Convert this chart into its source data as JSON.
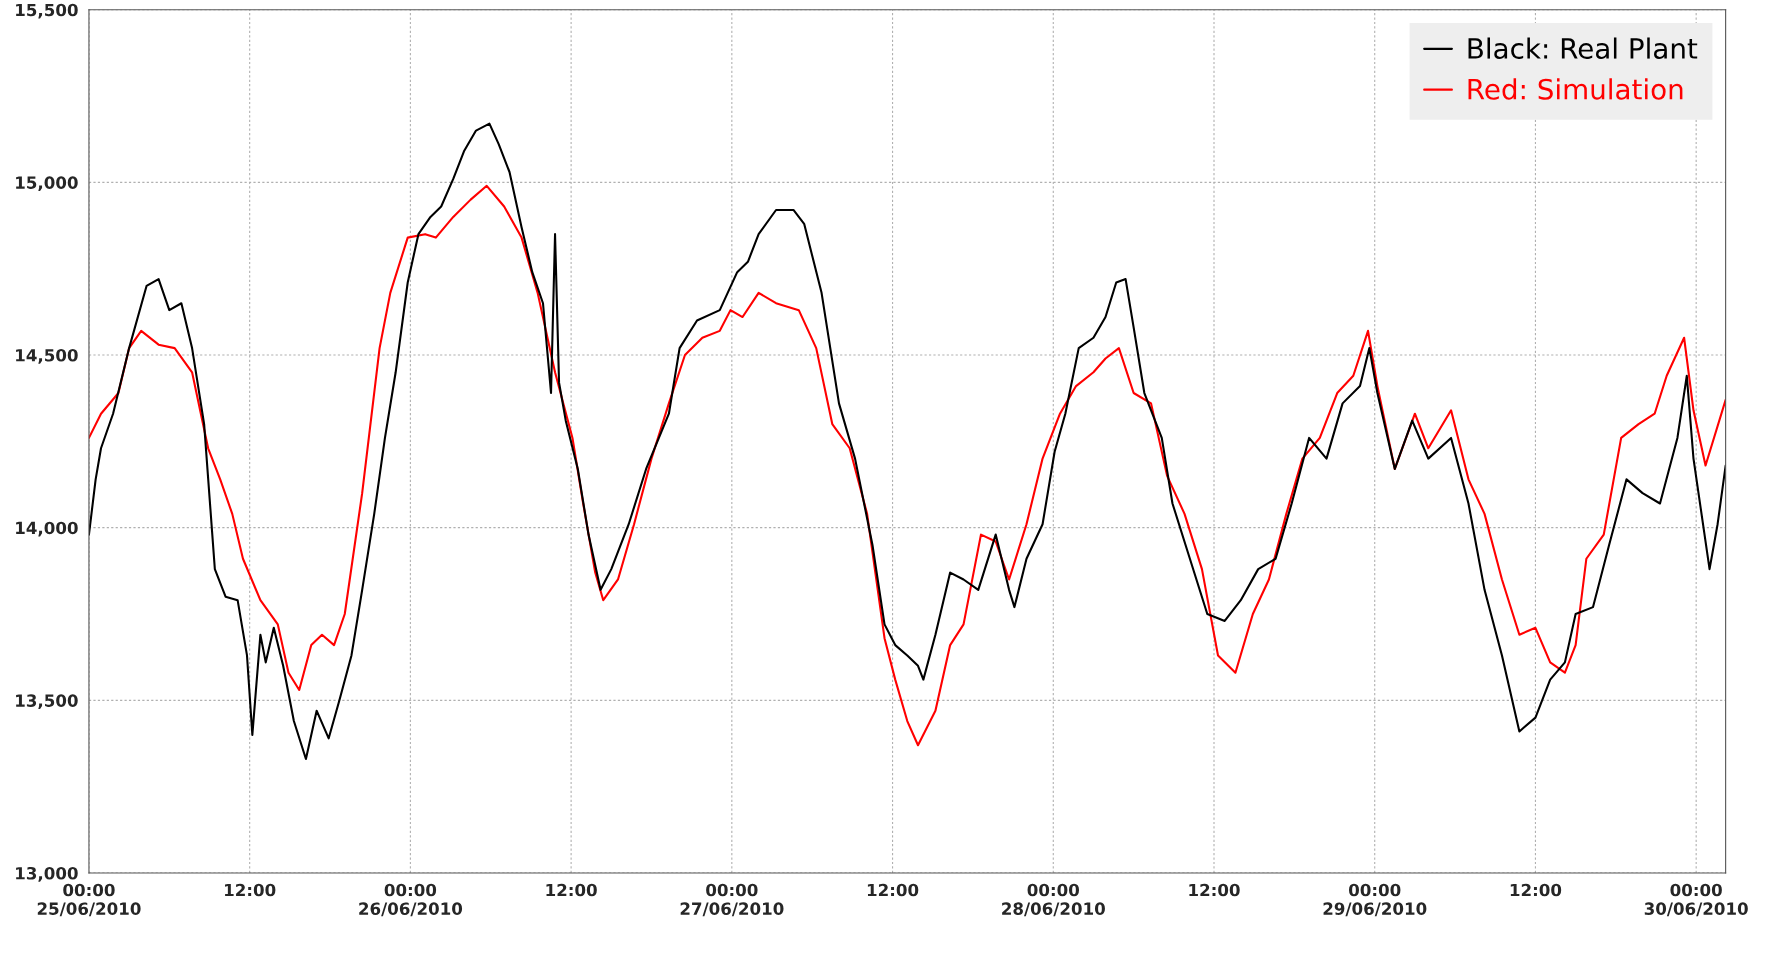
{
  "chart_data": {
    "type": "line",
    "xlim": [
      "2010-06-25T00:00",
      "2010-06-30T02:12"
    ],
    "ylim": [
      13000,
      15500
    ],
    "xticks": [
      {
        "value": "2010-06-25T00:00",
        "label": "00:00\n25/06/2010"
      },
      {
        "value": "2010-06-25T12:00",
        "label": "12:00"
      },
      {
        "value": "2010-06-26T00:00",
        "label": "00:00\n26/06/2010"
      },
      {
        "value": "2010-06-26T12:00",
        "label": "12:00"
      },
      {
        "value": "2010-06-27T00:00",
        "label": "00:00\n27/06/2010"
      },
      {
        "value": "2010-06-27T12:00",
        "label": "12:00"
      },
      {
        "value": "2010-06-28T00:00",
        "label": "00:00\n28/06/2010"
      },
      {
        "value": "2010-06-28T12:00",
        "label": "12:00"
      },
      {
        "value": "2010-06-29T00:00",
        "label": "00:00\n29/06/2010"
      },
      {
        "value": "2010-06-29T12:00",
        "label": "12:00"
      },
      {
        "value": "2010-06-30T00:00",
        "label": "00:00\n30/06/2010"
      }
    ],
    "yticks": [
      {
        "value": 13000,
        "label": "13,000"
      },
      {
        "value": 13500,
        "label": "13,500"
      },
      {
        "value": 14000,
        "label": "14,000"
      },
      {
        "value": 14500,
        "label": "14,500"
      },
      {
        "value": 15000,
        "label": "15,000"
      },
      {
        "value": 15500,
        "label": "15,500"
      }
    ],
    "grid": true,
    "legend": "top right",
    "series": [
      {
        "name": "Red: Simulation",
        "color": "#ff0000",
        "x": [
          "2010-06-25T00:00",
          "2010-06-25T00:54",
          "2010-06-25T02:12",
          "2010-06-25T03:00",
          "2010-06-25T03:54",
          "2010-06-25T05:12",
          "2010-06-25T06:24",
          "2010-06-25T07:42",
          "2010-06-25T08:54",
          "2010-06-25T09:48",
          "2010-06-25T10:42",
          "2010-06-25T11:30",
          "2010-06-25T12:48",
          "2010-06-25T14:06",
          "2010-06-25T14:54",
          "2010-06-25T15:42",
          "2010-06-25T16:36",
          "2010-06-25T17:24",
          "2010-06-25T18:18",
          "2010-06-25T19:06",
          "2010-06-25T20:24",
          "2010-06-25T21:42",
          "2010-06-25T22:30",
          "2010-06-25T23:48",
          "2010-06-26T01:06",
          "2010-06-26T01:54",
          "2010-06-26T03:12",
          "2010-06-26T04:30",
          "2010-06-26T05:42",
          "2010-06-26T07:00",
          "2010-06-26T08:18",
          "2010-06-26T09:30",
          "2010-06-26T10:48",
          "2010-06-26T12:06",
          "2010-06-26T12:54",
          "2010-06-26T13:48",
          "2010-06-26T14:24",
          "2010-06-26T15:30",
          "2010-06-26T16:42",
          "2010-06-26T18:00",
          "2010-06-26T19:18",
          "2010-06-26T20:30",
          "2010-06-26T21:48",
          "2010-06-26T23:06",
          "2010-06-26T23:54",
          "2010-06-27T00:48",
          "2010-06-27T02:00",
          "2010-06-27T03:18",
          "2010-06-27T05:00",
          "2010-06-27T06:18",
          "2010-06-27T07:30",
          "2010-06-27T08:48",
          "2010-06-27T10:06",
          "2010-06-27T11:24",
          "2010-06-27T12:12",
          "2010-06-27T13:06",
          "2010-06-27T13:54",
          "2010-06-27T15:12",
          "2010-06-27T16:18",
          "2010-06-27T17:18",
          "2010-06-27T18:36",
          "2010-06-27T19:42",
          "2010-06-27T20:42",
          "2010-06-27T22:00",
          "2010-06-27T23:12",
          "2010-06-28T00:30",
          "2010-06-28T01:42",
          "2010-06-28T03:00",
          "2010-06-28T03:54",
          "2010-06-28T04:54",
          "2010-06-28T06:00",
          "2010-06-28T07:18",
          "2010-06-28T08:30",
          "2010-06-28T09:48",
          "2010-06-28T11:06",
          "2010-06-28T12:18",
          "2010-06-28T13:36",
          "2010-06-28T14:54",
          "2010-06-28T16:06",
          "2010-06-28T17:24",
          "2010-06-28T18:36",
          "2010-06-28T19:54",
          "2010-06-28T21:12",
          "2010-06-28T22:24",
          "2010-06-28T23:30",
          "2010-06-29T00:12",
          "2010-06-29T01:30",
          "2010-06-29T03:00",
          "2010-06-29T04:00",
          "2010-06-29T05:42",
          "2010-06-29T07:00",
          "2010-06-29T08:12",
          "2010-06-29T09:30",
          "2010-06-29T10:48",
          "2010-06-29T12:00",
          "2010-06-29T13:06",
          "2010-06-29T14:12",
          "2010-06-29T15:00",
          "2010-06-29T15:48",
          "2010-06-29T17:06",
          "2010-06-29T18:24",
          "2010-06-29T19:42",
          "2010-06-29T20:54",
          "2010-06-29T21:48",
          "2010-06-29T23:06",
          "2010-06-29T23:48",
          "2010-06-30T00:42",
          "2010-06-30T02:12"
        ],
        "values": [
          14260,
          14330,
          14390,
          14520,
          14570,
          14530,
          14520,
          14450,
          14230,
          14140,
          14040,
          13910,
          13790,
          13720,
          13580,
          13530,
          13660,
          13690,
          13660,
          13750,
          14100,
          14520,
          14680,
          14840,
          14850,
          14840,
          14900,
          14950,
          14990,
          14930,
          14840,
          14680,
          14450,
          14260,
          14070,
          13870,
          13790,
          13850,
          14010,
          14200,
          14360,
          14500,
          14550,
          14570,
          14630,
          14610,
          14680,
          14650,
          14630,
          14520,
          14300,
          14230,
          14040,
          13680,
          13560,
          13440,
          13370,
          13470,
          13660,
          13720,
          13980,
          13960,
          13850,
          14010,
          14200,
          14330,
          14410,
          14450,
          14490,
          14520,
          14390,
          14360,
          14150,
          14040,
          13880,
          13630,
          13580,
          13750,
          13850,
          14040,
          14200,
          14260,
          14390,
          14440,
          14570,
          14410,
          14170,
          14330,
          14230,
          14340,
          14140,
          14040,
          13850,
          13690,
          13710,
          13610,
          13580,
          13660,
          13910,
          13980,
          14260,
          14300,
          14330,
          14440,
          14550,
          14340,
          14180,
          14370
        ]
      },
      {
        "name": "Black: Real Plant",
        "color": "#000000",
        "x": [
          "2010-06-25T00:00",
          "2010-06-25T00:30",
          "2010-06-25T00:54",
          "2010-06-25T01:48",
          "2010-06-25T03:00",
          "2010-06-25T04:18",
          "2010-06-25T05:12",
          "2010-06-25T06:00",
          "2010-06-25T06:54",
          "2010-06-25T07:42",
          "2010-06-25T08:36",
          "2010-06-25T09:24",
          "2010-06-25T10:12",
          "2010-06-25T11:06",
          "2010-06-25T11:48",
          "2010-06-25T12:12",
          "2010-06-25T12:48",
          "2010-06-25T13:12",
          "2010-06-25T13:48",
          "2010-06-25T14:30",
          "2010-06-25T15:18",
          "2010-06-25T16:12",
          "2010-06-25T17:00",
          "2010-06-25T17:54",
          "2010-06-25T18:42",
          "2010-06-25T19:36",
          "2010-06-25T20:24",
          "2010-06-25T21:18",
          "2010-06-25T22:06",
          "2010-06-25T22:54",
          "2010-06-25T23:48",
          "2010-06-26T00:36",
          "2010-06-26T01:30",
          "2010-06-26T02:18",
          "2010-06-26T03:12",
          "2010-06-26T04:00",
          "2010-06-26T04:54",
          "2010-06-26T05:54",
          "2010-06-26T06:36",
          "2010-06-26T07:24",
          "2010-06-26T08:18",
          "2010-06-26T09:06",
          "2010-06-26T09:54",
          "2010-06-26T10:30",
          "2010-06-26T10:48",
          "2010-06-26T11:06",
          "2010-06-26T11:36",
          "2010-06-26T12:30",
          "2010-06-26T13:18",
          "2010-06-26T14:12",
          "2010-06-26T15:00",
          "2010-06-26T16:18",
          "2010-06-26T17:36",
          "2010-06-26T19:18",
          "2010-06-26T20:06",
          "2010-06-26T21:24",
          "2010-06-26T23:06",
          "2010-06-27T00:24",
          "2010-06-27T01:12",
          "2010-06-27T02:00",
          "2010-06-27T03:18",
          "2010-06-27T04:36",
          "2010-06-27T05:24",
          "2010-06-27T06:42",
          "2010-06-27T08:00",
          "2010-06-27T09:12",
          "2010-06-27T10:30",
          "2010-06-27T11:24",
          "2010-06-27T12:12",
          "2010-06-27T13:06",
          "2010-06-27T13:54",
          "2010-06-27T14:18",
          "2010-06-27T15:12",
          "2010-06-27T16:18",
          "2010-06-27T17:18",
          "2010-06-27T18:24",
          "2010-06-27T19:42",
          "2010-06-27T20:42",
          "2010-06-27T21:06",
          "2010-06-27T22:00",
          "2010-06-27T23:12",
          "2010-06-28T00:06",
          "2010-06-28T00:54",
          "2010-06-28T01:54",
          "2010-06-28T03:00",
          "2010-06-28T03:54",
          "2010-06-28T04:42",
          "2010-06-28T05:24",
          "2010-06-28T06:00",
          "2010-06-28T06:48",
          "2010-06-28T08:06",
          "2010-06-28T08:54",
          "2010-06-28T10:12",
          "2010-06-28T11:30",
          "2010-06-28T12:48",
          "2010-06-28T14:00",
          "2010-06-28T15:18",
          "2010-06-28T16:36",
          "2010-06-28T17:48",
          "2010-06-28T19:06",
          "2010-06-28T20:24",
          "2010-06-28T21:36",
          "2010-06-28T22:54",
          "2010-06-28T23:36",
          "2010-06-29T00:12",
          "2010-06-29T01:30",
          "2010-06-29T02:48",
          "2010-06-29T04:00",
          "2010-06-29T05:42",
          "2010-06-29T07:00",
          "2010-06-29T08:12",
          "2010-06-29T09:30",
          "2010-06-29T10:48",
          "2010-06-29T12:00",
          "2010-06-29T13:06",
          "2010-06-29T14:12",
          "2010-06-29T15:00",
          "2010-06-29T16:18",
          "2010-06-29T17:30",
          "2010-06-29T18:48",
          "2010-06-29T20:00",
          "2010-06-29T21:18",
          "2010-06-29T22:36",
          "2010-06-29T23:18",
          "2010-06-29T23:48",
          "2010-06-30T01:00",
          "2010-06-30T01:36",
          "2010-06-30T02:12"
        ],
        "values": [
          13980,
          14140,
          14230,
          14330,
          14520,
          14700,
          14720,
          14630,
          14650,
          14520,
          14300,
          13880,
          13800,
          13790,
          13630,
          13400,
          13690,
          13610,
          13710,
          13600,
          13440,
          13330,
          13470,
          13390,
          13500,
          13630,
          13820,
          14040,
          14260,
          14450,
          14710,
          14850,
          14900,
          14930,
          15010,
          15090,
          15150,
          15170,
          15110,
          15030,
          14870,
          14740,
          14650,
          14390,
          14850,
          14420,
          14310,
          14170,
          13980,
          13820,
          13880,
          14010,
          14170,
          14330,
          14520,
          14600,
          14630,
          14740,
          14770,
          14850,
          14920,
          14920,
          14880,
          14680,
          14360,
          14200,
          13950,
          13720,
          13660,
          13630,
          13600,
          13560,
          13690,
          13870,
          13850,
          13820,
          13980,
          13820,
          13770,
          13910,
          14010,
          14220,
          14330,
          14520,
          14550,
          14610,
          14710,
          14720,
          14580,
          14390,
          14260,
          14070,
          13910,
          13750,
          13730,
          13790,
          13880,
          13910,
          14070,
          14260,
          14200,
          14360,
          14410,
          14520,
          14390,
          14170,
          14310,
          14200,
          14260,
          14070,
          13820,
          13630,
          13410,
          13450,
          13560,
          13610,
          13750,
          13770,
          13950,
          14140,
          14100,
          14070,
          14260,
          14440,
          14200,
          13880,
          14010,
          14180
        ]
      }
    ]
  }
}
